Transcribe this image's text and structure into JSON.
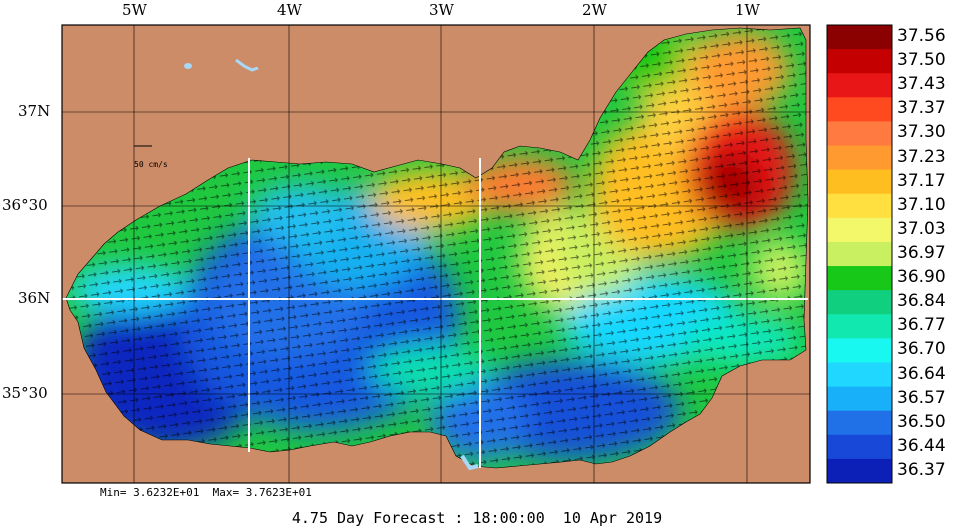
{
  "map": {
    "lon_labels": [
      "5W",
      "4W",
      "3W",
      "2W",
      "1W"
    ],
    "lat_labels": [
      "37N",
      "36°30",
      "36N",
      "35°30"
    ],
    "scale_label": "50 cm/s"
  },
  "colorbar": {
    "labels": [
      "37.56",
      "37.50",
      "37.43",
      "37.37",
      "37.30",
      "37.23",
      "37.17",
      "37.10",
      "37.03",
      "36.97",
      "36.90",
      "36.84",
      "36.77",
      "36.70",
      "36.64",
      "36.57",
      "36.50",
      "36.44",
      "36.37"
    ],
    "colors": [
      "#8b0000",
      "#c40000",
      "#e81616",
      "#ff4a20",
      "#ff7a40",
      "#ff9a30",
      "#ffbe20",
      "#ffe040",
      "#f2f86a",
      "#c8f060",
      "#18c818",
      "#10d080",
      "#10e8b0",
      "#18f8f0",
      "#20d8ff",
      "#18b0f8",
      "#2070e8",
      "#1848d8",
      "#0c20b8"
    ]
  },
  "stats": {
    "text": "Min= 3.6232E+01  Max= 3.7623E+01"
  },
  "title": {
    "text": "4.75 Day Forecast : 18:00:00  10 Apr 2019"
  },
  "colors": {
    "land": "#cd8c68",
    "background": "#ffffff"
  }
}
